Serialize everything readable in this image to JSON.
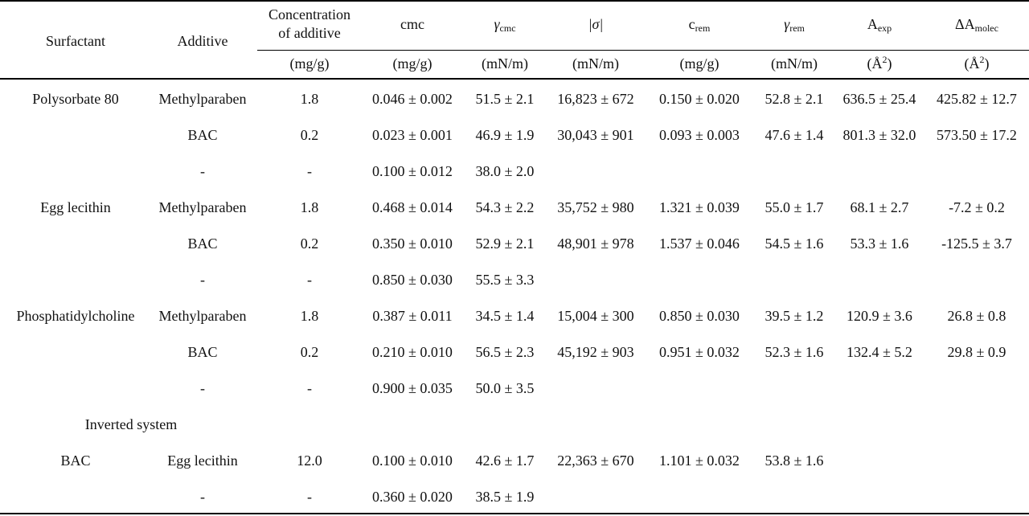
{
  "header": {
    "surfactant": "Surfactant",
    "additive": "Additive",
    "concentration_line1": "Concentration",
    "concentration_line2": "of additive",
    "cmc": "cmc",
    "gamma_cmc_symbol": "γ",
    "gamma_cmc_sub": "cmc",
    "sigma": "|σ|",
    "crem_main": "c",
    "crem_sub": "rem",
    "gamma_rem_symbol": "γ",
    "gamma_rem_sub": "rem",
    "aexp_main": "A",
    "aexp_sub": "exp",
    "damolec_main": "ΔA",
    "damolec_sub": "molec"
  },
  "units": {
    "concentration": "(mg/g)",
    "cmc": "(mN/m)",
    "cmc_conc": "(mg/g)",
    "gamma_cmc": "(mN/m)",
    "sigma": "(mN/m)",
    "crem": "(mg/g)",
    "gamma_rem": "(mN/m)",
    "aexp": "(Å",
    "aexp_sup": "2",
    "aexp_close": ")",
    "damolec": "(Å",
    "damolec_sup": "2",
    "damolec_close": ")"
  },
  "rows": [
    {
      "surfactant": "Polysorbate 80",
      "additive": "Methylparaben",
      "conc": "1.8",
      "cmc": "0.046 ± 0.002",
      "gcmc": "51.5 ± 2.1",
      "sigma": "16,823 ± 672",
      "crem": "0.150 ± 0.020",
      "grem": "52.8 ± 2.1",
      "aexp": "636.5 ± 25.4",
      "damolec": "425.82 ± 12.7"
    },
    {
      "surfactant": "",
      "additive": "BAC",
      "conc": "0.2",
      "cmc": "0.023 ± 0.001",
      "gcmc": "46.9 ± 1.9",
      "sigma": "30,043 ± 901",
      "crem": "0.093 ± 0.003",
      "grem": "47.6 ± 1.4",
      "aexp": "801.3 ± 32.0",
      "damolec": "573.50 ± 17.2"
    },
    {
      "surfactant": "",
      "additive": "-",
      "conc": "-",
      "cmc": "0.100 ± 0.012",
      "gcmc": "38.0 ± 2.0",
      "sigma": "",
      "crem": "",
      "grem": "",
      "aexp": "",
      "damolec": ""
    },
    {
      "surfactant": "Egg lecithin",
      "additive": "Methylparaben",
      "conc": "1.8",
      "cmc": "0.468 ± 0.014",
      "gcmc": "54.3 ± 2.2",
      "sigma": "35,752 ± 980",
      "crem": "1.321 ± 0.039",
      "grem": "55.0 ± 1.7",
      "aexp": "68.1 ± 2.7",
      "damolec": "-7.2 ± 0.2"
    },
    {
      "surfactant": "",
      "additive": "BAC",
      "conc": "0.2",
      "cmc": "0.350 ± 0.010",
      "gcmc": "52.9 ± 2.1",
      "sigma": "48,901 ± 978",
      "crem": "1.537 ± 0.046",
      "grem": "54.5 ± 1.6",
      "aexp": "53.3 ± 1.6",
      "damolec": "-125.5 ± 3.7"
    },
    {
      "surfactant": "",
      "additive": "-",
      "conc": "-",
      "cmc": "0.850 ± 0.030",
      "gcmc": "55.5 ± 3.3",
      "sigma": "",
      "crem": "",
      "grem": "",
      "aexp": "",
      "damolec": ""
    },
    {
      "surfactant": "Phosphatidylcholine",
      "additive": "Methylparaben",
      "conc": "1.8",
      "cmc": "0.387 ± 0.011",
      "gcmc": "34.5 ± 1.4",
      "sigma": "15,004 ± 300",
      "crem": "0.850 ± 0.030",
      "grem": "39.5 ± 1.2",
      "aexp": "120.9 ± 3.6",
      "damolec": "26.8 ± 0.8"
    },
    {
      "surfactant": "",
      "additive": "BAC",
      "conc": "0.2",
      "cmc": "0.210 ± 0.010",
      "gcmc": "56.5 ± 2.3",
      "sigma": "45,192 ± 903",
      "crem": "0.951 ± 0.032",
      "grem": "52.3 ± 1.6",
      "aexp": "132.4 ± 5.2",
      "damolec": "29.8 ± 0.9"
    },
    {
      "surfactant": "",
      "additive": "-",
      "conc": "-",
      "cmc": "0.900 ± 0.035",
      "gcmc": "50.0 ± 3.5",
      "sigma": "",
      "crem": "",
      "grem": "",
      "aexp": "",
      "damolec": ""
    },
    {
      "surfactant": "Inverted system",
      "additive": "",
      "conc": "",
      "cmc": "",
      "gcmc": "",
      "sigma": "",
      "crem": "",
      "grem": "",
      "aexp": "",
      "damolec": ""
    },
    {
      "surfactant": "BAC",
      "additive": "Egg lecithin",
      "conc": "12.0",
      "cmc": "0.100 ± 0.010",
      "gcmc": "42.6 ± 1.7",
      "sigma": "22,363 ± 670",
      "crem": "1.101 ± 0.032",
      "grem": "53.8 ± 1.6",
      "aexp": "",
      "damolec": ""
    },
    {
      "surfactant": "",
      "additive": "-",
      "conc": "-",
      "cmc": "0.360 ± 0.020",
      "gcmc": "38.5 ± 1.9",
      "sigma": "",
      "crem": "",
      "grem": "",
      "aexp": "",
      "damolec": ""
    }
  ]
}
